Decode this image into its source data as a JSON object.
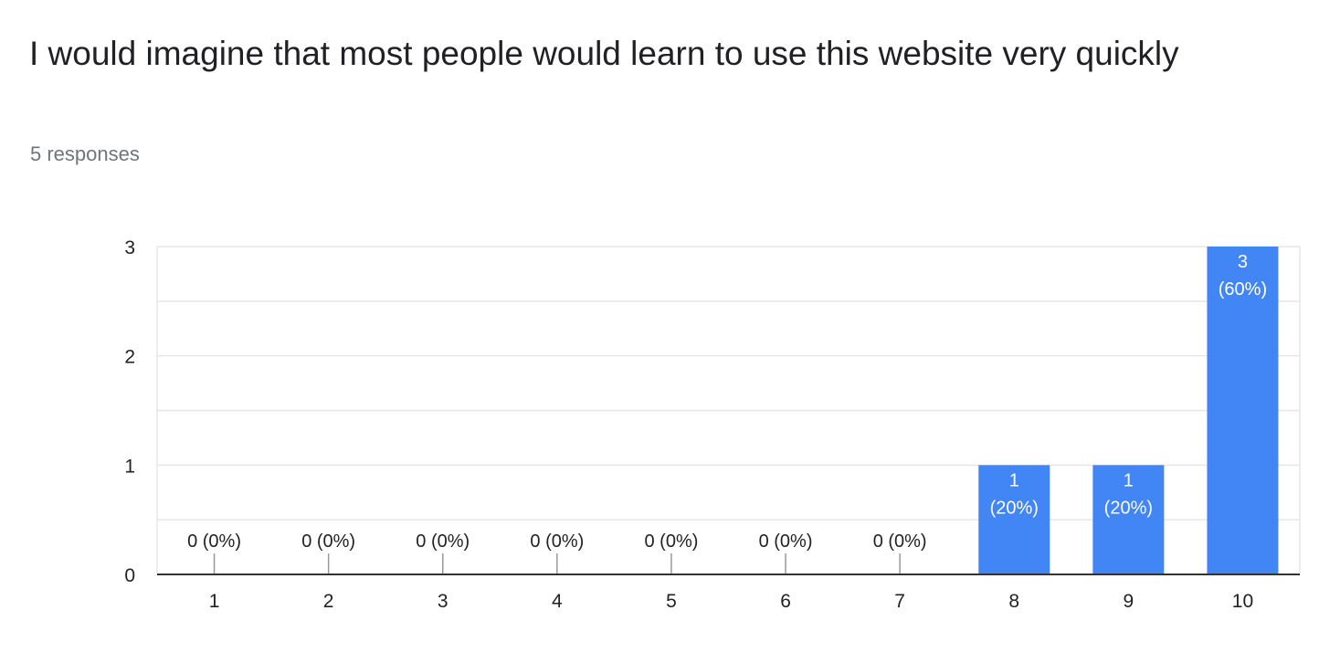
{
  "question_title": "I would imagine that most people would learn to use this website very quickly",
  "responses_text": "5 responses",
  "colors": {
    "bar": "#4285f4",
    "grid": "#e6e6e6",
    "axis": "#333333",
    "tick": "#999999"
  },
  "chart_data": {
    "type": "bar",
    "title": "I would imagine that most people would learn to use this website very quickly",
    "xlabel": "",
    "ylabel": "",
    "categories": [
      "1",
      "2",
      "3",
      "4",
      "5",
      "6",
      "7",
      "8",
      "9",
      "10"
    ],
    "values": [
      0,
      0,
      0,
      0,
      0,
      0,
      0,
      1,
      1,
      3
    ],
    "data_labels": [
      "0 (0%)",
      "0 (0%)",
      "0 (0%)",
      "0 (0%)",
      "0 (0%)",
      "0 (0%)",
      "0 (0%)",
      "1|(20%)",
      "1|(20%)",
      "3|(60%)"
    ],
    "ylim": [
      0,
      3
    ],
    "yticks": [
      "0",
      "1",
      "2",
      "3"
    ],
    "grid": true
  }
}
